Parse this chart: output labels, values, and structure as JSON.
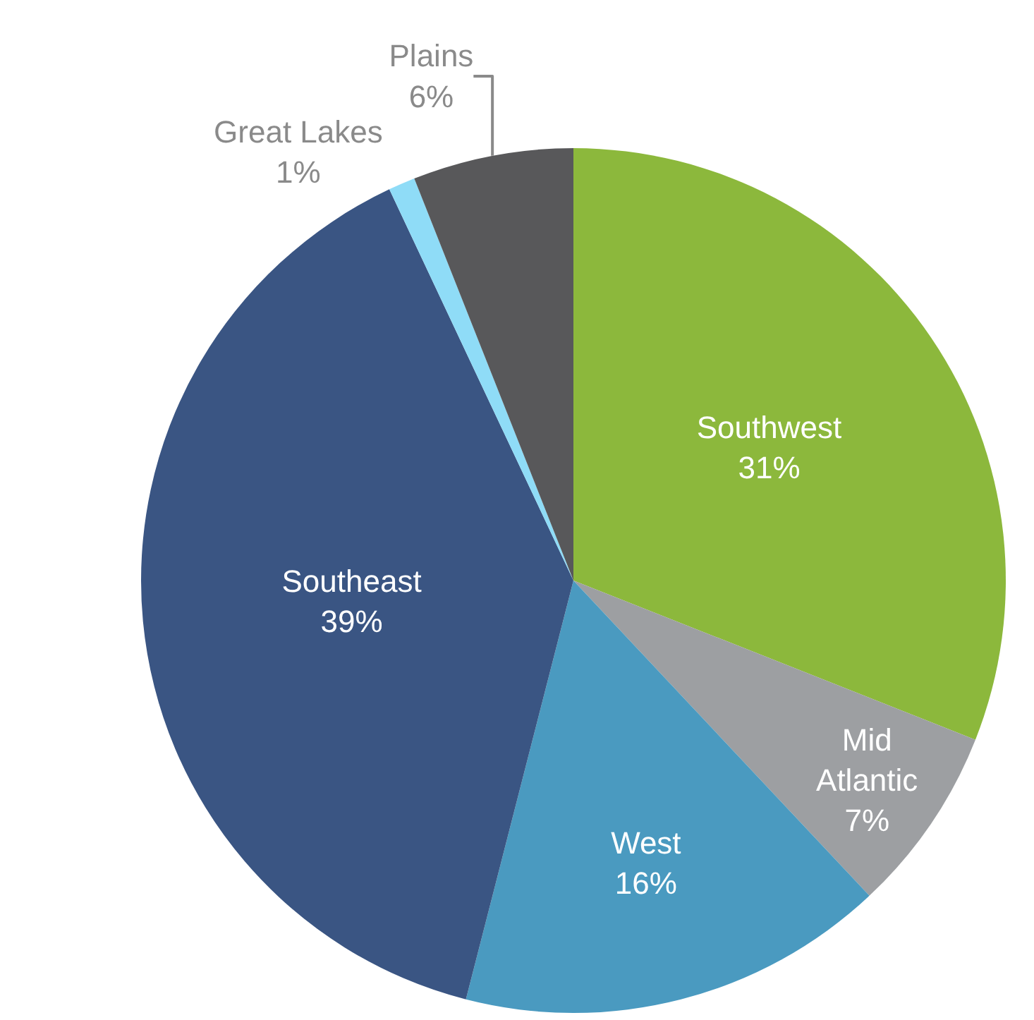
{
  "chart_data": {
    "type": "pie",
    "categories": [
      "Southwest",
      "Mid Atlantic",
      "West",
      "Southeast",
      "Great Lakes",
      "Plains"
    ],
    "values": [
      31,
      7,
      16,
      39,
      1,
      6
    ],
    "value_labels": [
      "31%",
      "7%",
      "16%",
      "39%",
      "1%",
      "6%"
    ],
    "colors": [
      "#8cb83c",
      "#9d9fa2",
      "#4a9ac0",
      "#3a5583",
      "#8fdcf7",
      "#58585a"
    ],
    "legend": false
  }
}
